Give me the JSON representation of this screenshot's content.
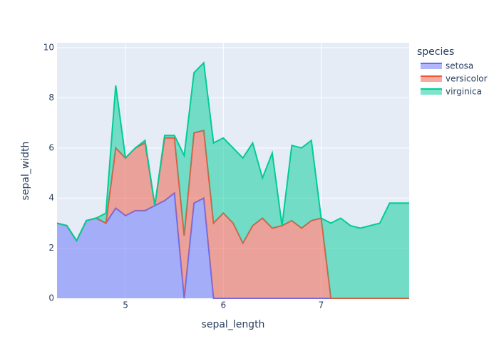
{
  "chart_data": {
    "type": "area",
    "x_label": "sepal_length",
    "y_label": "sepal_width",
    "legend_title": "species",
    "x": [
      4.3,
      4.4,
      4.5,
      4.6,
      4.7,
      4.8,
      4.9,
      5.0,
      5.1,
      5.2,
      5.3,
      5.4,
      5.5,
      5.6,
      5.7,
      5.8,
      5.9,
      6.0,
      6.1,
      6.2,
      6.3,
      6.4,
      6.5,
      6.6,
      6.7,
      6.8,
      6.9,
      7.0,
      7.1,
      7.2,
      7.3,
      7.4,
      7.6,
      7.7,
      7.9
    ],
    "series": [
      {
        "name": "setosa",
        "color": "#636efa",
        "values": [
          3.0,
          2.9,
          2.3,
          3.1,
          3.2,
          3.0,
          3.6,
          3.3,
          3.5,
          3.5,
          3.7,
          3.9,
          4.2,
          0,
          3.8,
          4.0,
          0,
          0,
          0,
          0,
          0,
          0,
          0,
          0,
          0,
          0,
          0,
          0,
          0,
          0,
          0,
          0,
          0,
          0,
          0
        ]
      },
      {
        "name": "versicolor",
        "color": "#ef553b",
        "values": [
          0,
          0,
          0,
          0,
          0,
          0,
          2.4,
          2.3,
          2.5,
          2.7,
          0,
          2.5,
          2.2,
          2.5,
          2.8,
          2.7,
          3.0,
          3.4,
          3.0,
          2.2,
          2.9,
          3.2,
          2.8,
          2.9,
          3.1,
          2.8,
          3.1,
          3.2,
          0,
          0,
          0,
          0,
          0,
          0,
          0
        ]
      },
      {
        "name": "virginica",
        "color": "#00cc96",
        "values": [
          0,
          0,
          0,
          0,
          0,
          0.4,
          2.5,
          0,
          0,
          0.1,
          0,
          0.1,
          0.1,
          3.2,
          2.4,
          2.7,
          3.2,
          3.0,
          3.0,
          3.4,
          3.3,
          1.6,
          3.0,
          0,
          3.0,
          3.2,
          3.2,
          0,
          3.0,
          3.2,
          2.9,
          2.8,
          3.0,
          3.8,
          3.8
        ]
      }
    ],
    "xlim": [
      4.3,
      7.9
    ],
    "xticks": [
      5,
      6,
      7
    ],
    "ylim": [
      0,
      10.2
    ],
    "yticks": [
      0,
      2,
      4,
      6,
      8,
      10
    ],
    "stacked": true,
    "grid": true
  }
}
